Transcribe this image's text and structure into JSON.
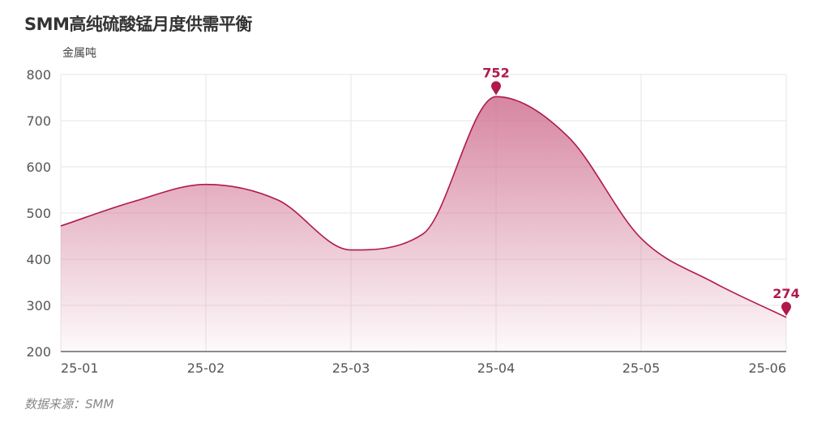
{
  "title": "SMM高纯硫酸锰月度供需平衡",
  "source": "数据来源：SMM",
  "colors": {
    "accent": "#b0194a",
    "fill_top": "#d27896",
    "grid": "#e6e6e6",
    "axis": "#666666"
  },
  "chart_data": {
    "type": "area",
    "title": "SMM高纯硫酸锰月度供需平衡",
    "xlabel": "",
    "ylabel": "金属吨",
    "ylim": [
      200,
      800
    ],
    "yticks": [
      200,
      300,
      400,
      500,
      600,
      700,
      800
    ],
    "x_axis_ticks": [
      "25-01",
      "25-02",
      "25-03",
      "25-04",
      "25-05",
      "25-06"
    ],
    "x_points": [
      "2025-01",
      "2025-01",
      "2025-02",
      "2025-02",
      "2025-03",
      "2025-03",
      "2025-04",
      "2025-04",
      "2025-05",
      "2025-05",
      "2025-06"
    ],
    "values": [
      472,
      525,
      562,
      528,
      420,
      455,
      752,
      665,
      445,
      350,
      274
    ],
    "annotated_points": [
      {
        "x": "2025-04",
        "value": 752,
        "label": "752"
      },
      {
        "x": "2025-06",
        "value": 274,
        "label": "274"
      }
    ],
    "grid": true,
    "legend": "none"
  }
}
